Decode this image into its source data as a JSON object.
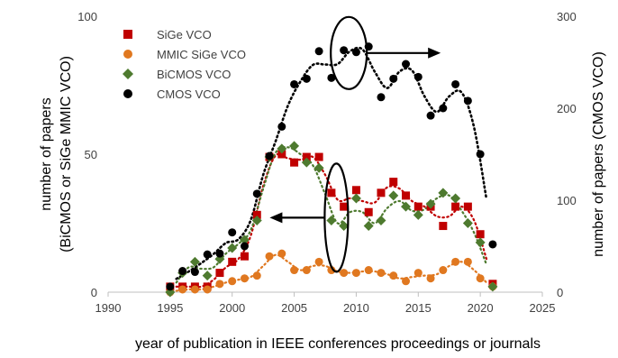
{
  "chart_data": {
    "type": "scatter",
    "xlabel": "year of publication in IEEE conferences proceedings  or journals",
    "ylabel_left": [
      "number of papers",
      "(BiCMOS or SiGe MMIC VCO)"
    ],
    "ylabel_right": "number of papers (CMOS VCO)",
    "xlim": [
      1990,
      2025
    ],
    "ylim_left": [
      0,
      100
    ],
    "ylim_right": [
      0,
      300
    ],
    "x_ticks": [
      "1990",
      "1995",
      "2000",
      "2005",
      "2010",
      "2015",
      "2020",
      "2025"
    ],
    "y_ticks_left": [
      "0",
      "50",
      "100"
    ],
    "y_ticks_right": [
      "0",
      "100",
      "200",
      "300"
    ],
    "grid": false,
    "legend_position": "top-left",
    "trendline": "dotted moving average per series",
    "series": [
      {
        "name": "SiGe VCO",
        "axis": "left",
        "color": "#c00000",
        "marker": "square",
        "x": [
          1995,
          1996,
          1997,
          1998,
          1999,
          2000,
          2001,
          2002,
          2003,
          2004,
          2005,
          2006,
          2007,
          2008,
          2009,
          2010,
          2011,
          2012,
          2013,
          2014,
          2015,
          2016,
          2017,
          2018,
          2019,
          2020,
          2021
        ],
        "y": [
          2,
          2,
          2,
          2,
          7,
          11,
          13,
          28,
          49,
          50,
          47,
          49,
          49,
          36,
          31,
          37,
          29,
          36,
          40,
          35,
          31,
          31,
          24,
          31,
          31,
          21,
          3
        ]
      },
      {
        "name": "MMIC SiGe VCO",
        "axis": "left",
        "color": "#e07820",
        "marker": "circle",
        "x": [
          1995,
          1996,
          1997,
          1998,
          1999,
          2000,
          2001,
          2002,
          2003,
          2004,
          2005,
          2006,
          2007,
          2008,
          2009,
          2010,
          2011,
          2012,
          2013,
          2014,
          2015,
          2016,
          2017,
          2018,
          2019,
          2020,
          2021
        ],
        "y": [
          0,
          1,
          1,
          1,
          3,
          4,
          5,
          6,
          13,
          14,
          8,
          8,
          11,
          8,
          7,
          7,
          8,
          7,
          6,
          4,
          7,
          5,
          8,
          11,
          11,
          5,
          2
        ]
      },
      {
        "name": "BiCMOS VCO",
        "axis": "left",
        "color": "#4e7a2f",
        "marker": "diamond",
        "x": [
          1995,
          1996,
          1997,
          1998,
          1999,
          2000,
          2001,
          2002,
          2003,
          2004,
          2005,
          2006,
          2007,
          2008,
          2009,
          2010,
          2011,
          2012,
          2013,
          2014,
          2015,
          2016,
          2017,
          2018,
          2019,
          2020,
          2021
        ],
        "y": [
          0,
          7,
          11,
          6,
          12,
          16,
          19,
          26,
          49,
          52,
          53,
          47,
          45,
          26,
          24,
          34,
          24,
          26,
          35,
          31,
          28,
          32,
          36,
          34,
          25,
          18,
          2
        ]
      },
      {
        "name": "CMOS VCO",
        "axis": "right",
        "color": "#000000",
        "marker": "circle",
        "x": [
          1995,
          1996,
          1997,
          1998,
          1999,
          2000,
          2001,
          2002,
          2003,
          2004,
          2005,
          2006,
          2007,
          2008,
          2009,
          2010,
          2011,
          2012,
          2013,
          2014,
          2015,
          2016,
          2017,
          2018,
          2019,
          2020,
          2021
        ],
        "y": [
          6,
          23,
          22,
          41,
          42,
          65,
          50,
          107,
          148,
          180,
          226,
          232,
          262,
          233,
          263,
          261,
          267,
          212,
          232,
          248,
          234,
          192,
          200,
          226,
          208,
          150,
          52
        ]
      }
    ],
    "annotations": [
      {
        "kind": "ellipse",
        "around": "CMOS VCO around 2010",
        "arrow": "right",
        "cx_year": 2009.4,
        "cy_value_right": 260
      },
      {
        "kind": "ellipse",
        "around": "BiCMOS/SiGe around 2008-2009",
        "arrow": "left",
        "cx_year": 2008.4,
        "cy_value_left": 27
      }
    ]
  }
}
